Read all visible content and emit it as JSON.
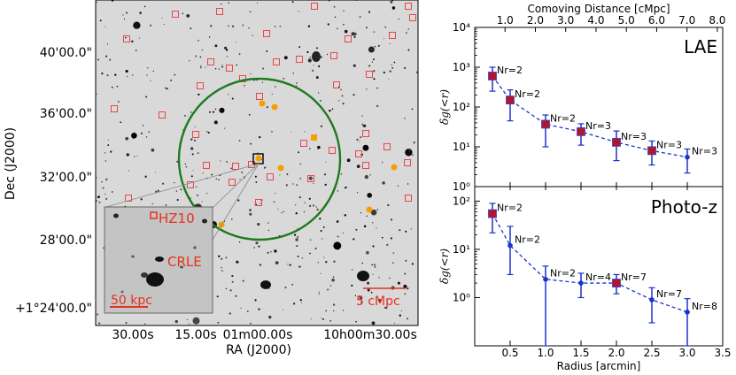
{
  "sky_image": {
    "ylabel": "Dec (J2000)",
    "xlabel": "RA (J2000)",
    "dec_ticks": [
      "40'00.0\"",
      "36'00.0\"",
      "32'00.0\"",
      "28'00.0\"",
      "+1°24'00.0\""
    ],
    "ra_ticks": [
      "30.00s",
      "15.00s",
      "01m00.00s",
      "10h00m30.00s"
    ],
    "inset": {
      "label_hz10": "HZ10",
      "label_crle": "CRLE",
      "scalebar_label": "50 kpc"
    },
    "scalebar_label": "5 cMpc",
    "colors": {
      "lae_box": "#e8474a",
      "photoz": "#f5a000",
      "circle": "#1e7a1e",
      "label": "#e8301c"
    }
  },
  "chart_data": [
    {
      "type": "line",
      "panel_label": "LAE",
      "ylabel": "δg(<r)",
      "yscale": "log",
      "ylim": [
        1,
        10000
      ],
      "y_ticks": [
        "10⁰",
        "10¹",
        "10²",
        "10³",
        "10⁴"
      ],
      "top_axis_title": "Comoving Distance [cMpc]",
      "top_ticks": [
        "1.0",
        "2.0",
        "3.0",
        "4.0",
        "5.0",
        "6.0",
        "7.0",
        "8.0"
      ],
      "x": [
        0.25,
        0.5,
        1.0,
        1.5,
        2.0,
        2.5,
        3.0
      ],
      "values": [
        600,
        150,
        37,
        24,
        13,
        8,
        5.5
      ],
      "err_lo": [
        250,
        45,
        10,
        11,
        4.5,
        3.5,
        2.2
      ],
      "err_hi": [
        1000,
        270,
        63,
        38,
        25,
        14,
        8.8
      ],
      "marker": [
        "square",
        "square",
        "square",
        "square",
        "square",
        "square",
        "dot"
      ],
      "n_labels": [
        "Nr=2",
        "Nr=2",
        "Nr=2",
        "Nr=3",
        "Nr=3",
        "Nr=3",
        "Nr=3"
      ]
    },
    {
      "type": "line",
      "panel_label": "Photo-z",
      "ylabel": "δg(<r)",
      "yscale": "log",
      "ylim": [
        0.1,
        200
      ],
      "y_ticks": [
        "10⁰",
        "10¹",
        "10²"
      ],
      "xlabel": "Radius [arcmin]",
      "x_ticks": [
        "0.5",
        "1.0",
        "1.5",
        "2.0",
        "2.5",
        "3.0",
        "3.5"
      ],
      "x": [
        0.25,
        0.5,
        1.0,
        1.5,
        2.0,
        2.5,
        3.0
      ],
      "values": [
        55,
        12,
        2.4,
        2.0,
        2.0,
        0.9,
        0.5
      ],
      "err_lo": [
        22,
        3.0,
        0.1,
        1.0,
        1.2,
        0.3,
        0.1
      ],
      "err_hi": [
        90,
        30,
        4.5,
        3.2,
        3.0,
        1.6,
        0.95
      ],
      "marker": [
        "square",
        "dot",
        "dot",
        "dot",
        "square",
        "dot",
        "dot"
      ],
      "n_labels": [
        "Nr=2",
        "Nr=2",
        "Nr=2",
        "Nr=4",
        "Nr=7",
        "Nr=7",
        "Nr=8"
      ]
    }
  ]
}
